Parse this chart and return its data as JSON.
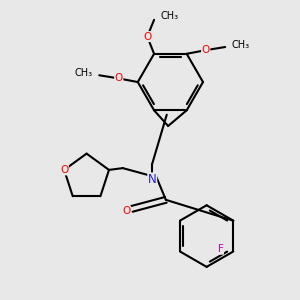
{
  "bg_color": "#e8e8e8",
  "bond_color": "#000000",
  "bond_width": 1.5,
  "atom_colors": {
    "O": "#ff0000",
    "N": "#2222cc",
    "F": "#cc00cc",
    "C": "#000000"
  },
  "font_size": 7.5,
  "fig_width": 3.0,
  "fig_height": 3.0,
  "xlim": [
    0.0,
    6.5
  ],
  "ylim": [
    0.5,
    7.0
  ]
}
